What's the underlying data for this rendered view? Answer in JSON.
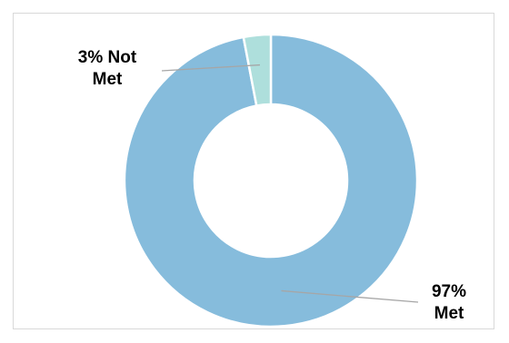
{
  "chart_data": {
    "type": "pie",
    "variant": "donut",
    "title": "",
    "legend": "none",
    "slices": [
      {
        "value": 97,
        "color": "#86bcdc",
        "label_pct": "97%",
        "label_text": "Met"
      },
      {
        "value": 3,
        "color": "#aedfdc",
        "label_pct": "3% Not",
        "label_text": "Met"
      }
    ],
    "colors": {
      "slice_border": "#ffffff",
      "leader_line": "#a6a6a6",
      "frame_border": "#d9d9d9"
    }
  }
}
